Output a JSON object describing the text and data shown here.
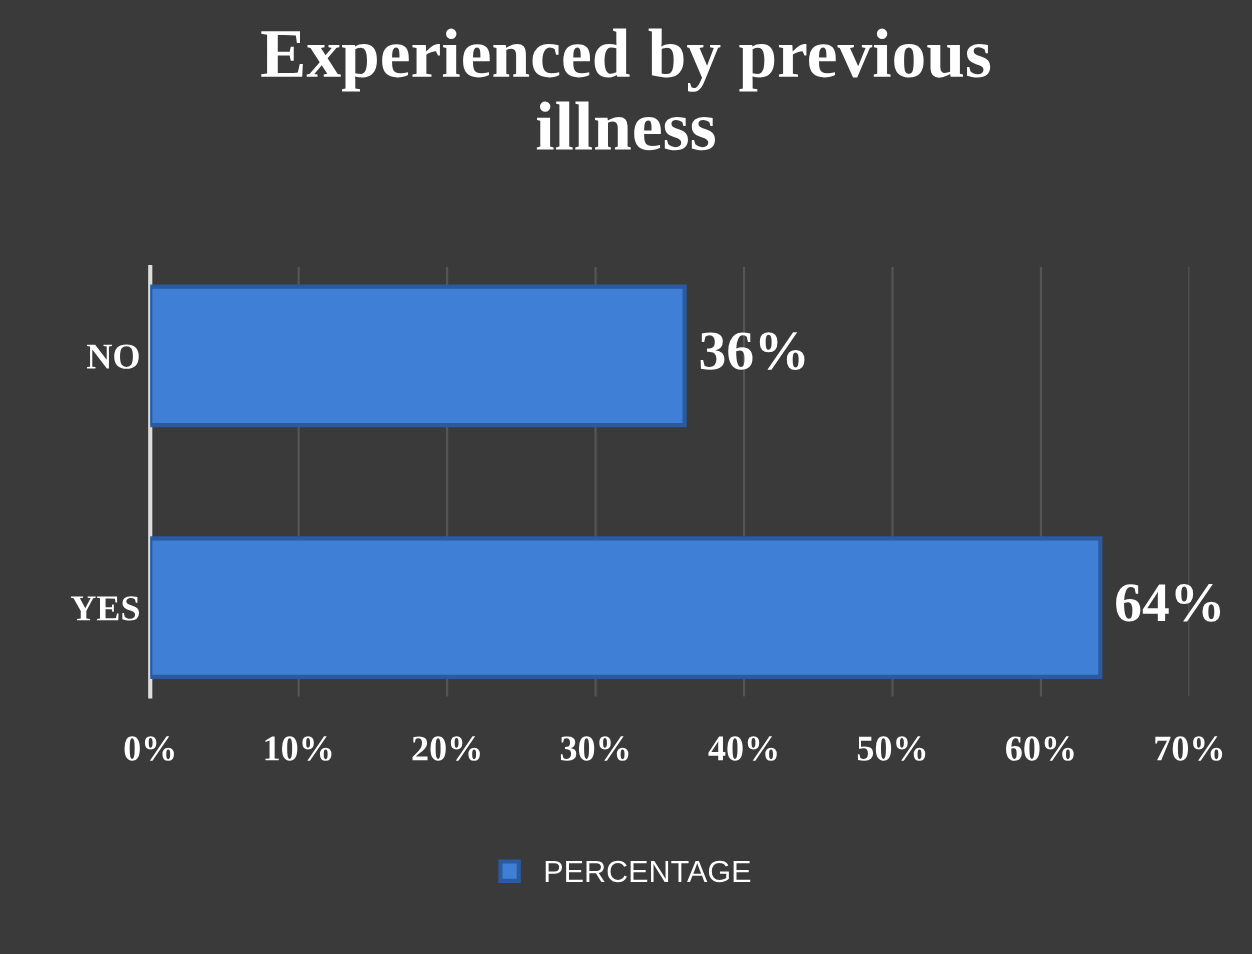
{
  "chart_data": {
    "type": "bar",
    "title": "Experienced by previous\nillness",
    "orientation": "horizontal",
    "categories": [
      "NO",
      "YES"
    ],
    "series": [
      {
        "name": "PERCENTAGE",
        "color": "#3f7fd6",
        "values": [
          36,
          64
        ]
      }
    ],
    "value_labels": [
      "36%",
      "64%"
    ],
    "xlim": [
      0,
      70
    ],
    "xticks": [
      {
        "value": 0,
        "label": "0%"
      },
      {
        "value": 10,
        "label": "10%"
      },
      {
        "value": 20,
        "label": "20%"
      },
      {
        "value": 30,
        "label": "30%"
      },
      {
        "value": 40,
        "label": "40%"
      },
      {
        "value": 50,
        "label": "50%"
      },
      {
        "value": 60,
        "label": "60%"
      },
      {
        "value": 70,
        "label": "70%"
      }
    ],
    "grid": "x",
    "legend": "bottom"
  }
}
